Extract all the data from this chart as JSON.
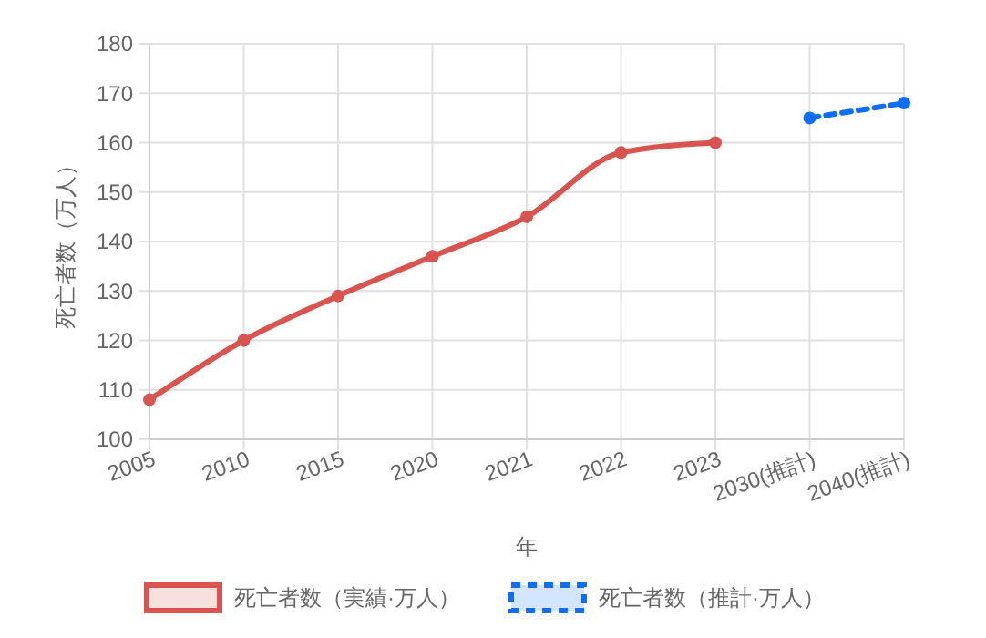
{
  "chart_data": {
    "type": "line",
    "xlabel": "年",
    "ylabel": "死亡者数（万人）",
    "categories": [
      "2005",
      "2010",
      "2015",
      "2020",
      "2021",
      "2022",
      "2023",
      "2030(推計)",
      "2040(推計)"
    ],
    "series": [
      {
        "name": "死亡者数（実績·万人）",
        "color": "#d9534f",
        "line_style": "solid",
        "values": [
          108,
          120,
          129,
          137,
          145,
          158,
          160,
          null,
          null
        ]
      },
      {
        "name": "死亡者数（推計·万人）",
        "color": "#0d6efd",
        "line_style": "dashed",
        "values": [
          null,
          null,
          null,
          null,
          null,
          null,
          null,
          165,
          168
        ]
      }
    ],
    "ylim": [
      100,
      180
    ],
    "yticks": [
      100,
      110,
      120,
      130,
      140,
      150,
      160,
      170,
      180
    ],
    "grid": true,
    "legend": "bottom",
    "marker": "circle"
  }
}
